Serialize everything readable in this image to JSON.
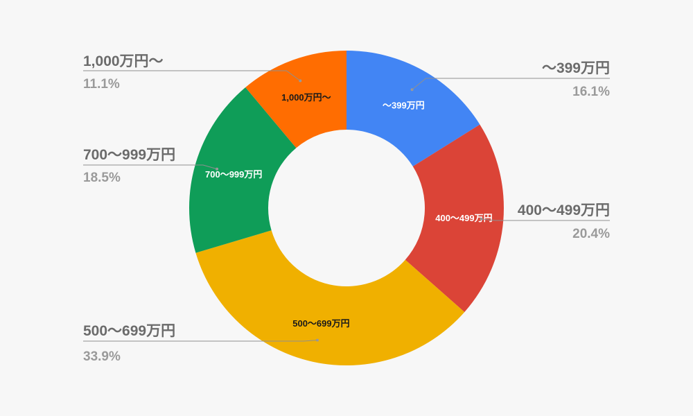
{
  "chart_data": {
    "type": "pie",
    "donut": true,
    "categories": [
      "～399万円",
      "400～499万円",
      "500～699万円",
      "700～999万円",
      "1,000万円～"
    ],
    "values": [
      16.1,
      20.4,
      33.9,
      18.5,
      11.1
    ],
    "value_labels": [
      "16.1%",
      "20.4%",
      "33.9%",
      "18.5%",
      "11.1%"
    ],
    "colors": [
      "#4285f4",
      "#db4437",
      "#f0b000",
      "#0f9d58",
      "#ff6d01"
    ],
    "label_colors": [
      "#ffffff",
      "#ffffff",
      "#1a1a1a",
      "#ffffff",
      "#1a1a1a"
    ],
    "legend": "callouts",
    "title": ""
  }
}
